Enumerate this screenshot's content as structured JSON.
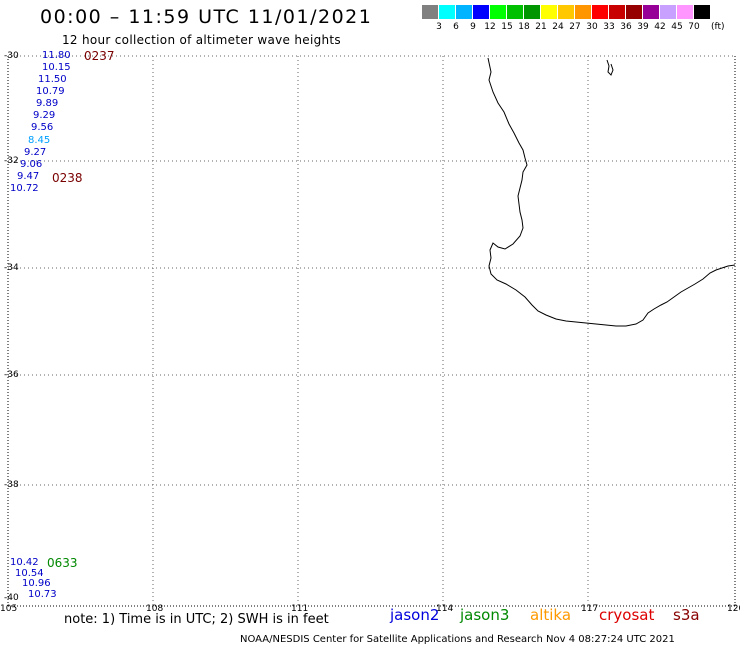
{
  "header": {
    "title": "00:00 – 11:59 UTC 11/01/2021",
    "subtitle": "12 hour collection of altimeter wave heights"
  },
  "color_scale": {
    "colors": [
      "#808080",
      "#00ffff",
      "#00b4ff",
      "#0000ff",
      "#00ff00",
      "#00c000",
      "#009600",
      "#ffff00",
      "#ffc800",
      "#ff9600",
      "#ff0000",
      "#c80000",
      "#960000",
      "#960096",
      "#c8a0ff",
      "#ff96ff",
      "#000000"
    ],
    "labels": [
      "3",
      "6",
      "9",
      "12",
      "15",
      "18",
      "21",
      "24",
      "27",
      "30",
      "33",
      "36",
      "39",
      "42",
      "45",
      "70"
    ],
    "unit": "(ft)"
  },
  "map": {
    "lat_labels": [
      "-30",
      "-32",
      "-34",
      "-36",
      "-38",
      "-40"
    ],
    "lon_labels": [
      "105",
      "108",
      "111",
      "114",
      "117",
      "120"
    ]
  },
  "tracks": [
    {
      "time": "0237",
      "values": [
        {
          "v": "11.80",
          "c": "#0000c8"
        },
        {
          "v": "10.15",
          "c": "#0000c8"
        },
        {
          "v": "11.50",
          "c": "#0000c8"
        },
        {
          "v": "10.79",
          "c": "#0000c8"
        },
        {
          "v": "9.89",
          "c": "#0000c8"
        },
        {
          "v": "9.29",
          "c": "#0000c8"
        },
        {
          "v": "9.56",
          "c": "#0000c8"
        },
        {
          "v": "8.45",
          "c": "#00a0ff"
        },
        {
          "v": "9.27",
          "c": "#0000c8"
        },
        {
          "v": "9.06",
          "c": "#0000c8"
        },
        {
          "v": "9.47",
          "c": "#0000c8"
        },
        {
          "v": "10.72",
          "c": "#0000c8"
        }
      ]
    },
    {
      "time": "0238"
    },
    {
      "time": "0633",
      "values": [
        {
          "v": "10.42",
          "c": "#0000c8"
        },
        {
          "v": "10.54",
          "c": "#0000c8"
        },
        {
          "v": "10.96",
          "c": "#0000c8"
        },
        {
          "v": "10.73",
          "c": "#0000c8"
        }
      ]
    }
  ],
  "note": "note:  1) Time is in UTC;  2) SWH is in feet",
  "satellites": [
    {
      "name": "jason2",
      "color": "#0000dd"
    },
    {
      "name": "jason3",
      "color": "#008800"
    },
    {
      "name": "altika",
      "color": "#ff9900"
    },
    {
      "name": "cryosat",
      "color": "#dd0000"
    },
    {
      "name": "s3a",
      "color": "#880000"
    }
  ],
  "footer": "NOAA/NESDIS Center for Satellite Applications and Research   Nov  4 08:27:24 UTC 2021"
}
